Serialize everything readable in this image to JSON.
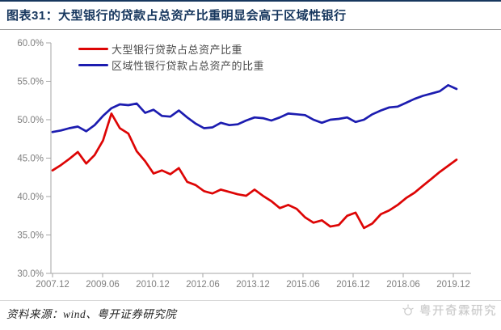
{
  "title": "图表31：大型银行的贷款占总资产比重明显会高于区域性银行",
  "footer": {
    "source": "资料来源：wind、粤开证券研究院"
  },
  "watermark": {
    "text": "粤开奇霖研究",
    "icon": "sun-logo"
  },
  "colors": {
    "title_navy": "#17375E",
    "header_rule": "#9e9e9e",
    "axis_gray": "#a6a6a6",
    "tick_label_gray": "#7f7f7f",
    "large_bank_red": "#DD0505",
    "regional_bank_blue": "#1C1CB0",
    "watermark_gray": "#c9c9c9"
  },
  "chart_data": {
    "type": "line",
    "title": "",
    "xlabel": "",
    "ylabel": "",
    "ylim": [
      30,
      60
    ],
    "ytick_step": 5,
    "grid": false,
    "legend_position": "top-left-inside",
    "y_tick_labels": [
      "60.0%",
      "55.0%",
      "50.0%",
      "45.0%",
      "40.0%",
      "35.0%",
      "30.0%"
    ],
    "x_axis_labels": [
      "2007.12",
      "2009.06",
      "2010.12",
      "2012.06",
      "2013.12",
      "2015.06",
      "2016.12",
      "2018.06",
      "2019.12"
    ],
    "categories": [
      "2007.12",
      "2008.03",
      "2008.06",
      "2008.09",
      "2008.12",
      "2009.03",
      "2009.06",
      "2009.09",
      "2009.12",
      "2010.03",
      "2010.06",
      "2010.09",
      "2010.12",
      "2011.03",
      "2011.06",
      "2011.09",
      "2011.12",
      "2012.03",
      "2012.06",
      "2012.09",
      "2012.12",
      "2013.03",
      "2013.06",
      "2013.09",
      "2013.12",
      "2014.03",
      "2014.06",
      "2014.09",
      "2014.12",
      "2015.03",
      "2015.06",
      "2015.09",
      "2015.12",
      "2016.03",
      "2016.06",
      "2016.09",
      "2016.12",
      "2017.03",
      "2017.06",
      "2017.09",
      "2017.12",
      "2018.03",
      "2018.06",
      "2018.09",
      "2018.12",
      "2019.03",
      "2019.06",
      "2019.09",
      "2019.12"
    ],
    "series": [
      {
        "name": "大型银行贷款占总资产比重",
        "color": "#DD0505",
        "values": [
          43.4,
          44.1,
          44.9,
          45.8,
          44.3,
          45.4,
          47.3,
          50.8,
          48.9,
          48.2,
          45.9,
          44.6,
          43.0,
          43.4,
          42.9,
          43.7,
          41.9,
          41.5,
          40.7,
          40.4,
          40.9,
          40.6,
          40.3,
          40.1,
          40.9,
          40.1,
          39.4,
          38.5,
          38.9,
          38.4,
          37.3,
          36.6,
          36.9,
          36.1,
          36.3,
          37.5,
          37.9,
          35.9,
          36.5,
          37.7,
          38.2,
          38.9,
          39.8,
          40.5,
          41.4,
          42.3,
          43.2,
          44.0,
          44.8
        ]
      },
      {
        "name": "区域性银行贷款占总资产的比重",
        "color": "#1C1CB0",
        "values": [
          48.4,
          48.6,
          48.9,
          49.1,
          48.5,
          49.3,
          50.5,
          51.5,
          52.0,
          51.9,
          52.1,
          50.9,
          51.3,
          50.5,
          50.4,
          51.2,
          50.3,
          49.5,
          48.9,
          49.0,
          49.6,
          49.3,
          49.4,
          49.9,
          50.3,
          50.2,
          49.9,
          50.3,
          50.8,
          50.7,
          50.6,
          50.0,
          49.6,
          50.0,
          50.1,
          50.3,
          49.7,
          50.0,
          50.7,
          51.2,
          51.6,
          51.7,
          52.2,
          52.7,
          53.1,
          53.4,
          53.7,
          54.5,
          54.0
        ]
      }
    ]
  }
}
